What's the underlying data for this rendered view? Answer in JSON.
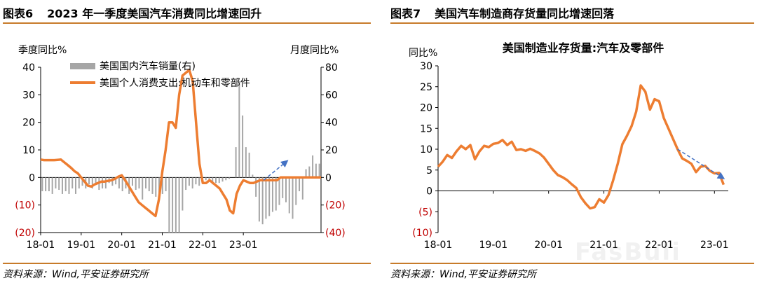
{
  "panels": [
    {
      "number": "图表6",
      "title": "2023 年一季度美国汽车消费同比增速回升"
    },
    {
      "number": "图表7",
      "title": "美国汽车制造商存货量同比增速回落"
    }
  ],
  "source": "资料来源：Wind,平安证券研究所",
  "watermark": "FasBuli",
  "chart_data": [
    {
      "type": "bar+line",
      "y_left_label": "季度同比%",
      "y_right_label": "月度同比%",
      "y_left_ticks": [
        "40",
        "30",
        "20",
        "10",
        "0",
        "(10)",
        "(20)"
      ],
      "y_right_ticks": [
        "80",
        "60",
        "40",
        "20",
        "0",
        "(20)",
        "(40)"
      ],
      "ylim_left": [
        -20,
        40
      ],
      "ylim_right": [
        -40,
        80
      ],
      "x_ticks": [
        "18-01",
        "19-01",
        "20-01",
        "21-01",
        "22-01",
        "23-01"
      ],
      "legend": [
        "美国国内汽车销量(右)",
        "美国个人消费支出:机动车和零部件"
      ],
      "colors": {
        "line": "#ed7d31",
        "bars": "#a6a6a6",
        "arrow": "#4472c4",
        "negative": "#c00000"
      },
      "series": [
        {
          "name": "美国国内汽车销量(右)",
          "axis": "right",
          "type": "bar",
          "values": [
            -10,
            -10,
            -10,
            -12,
            -8,
            -9,
            -12,
            -10,
            -12,
            -8,
            -12,
            -8,
            -6,
            -8,
            -5,
            -8,
            -4,
            -9,
            -8,
            -8,
            -4,
            -6,
            -5,
            -8,
            -10,
            -8,
            -12,
            -6,
            -9,
            -8,
            -16,
            -8,
            -10,
            -12,
            -14,
            -15,
            -12,
            -10,
            -40,
            -40,
            -40,
            -40,
            -24,
            -9,
            -6,
            -8,
            -5,
            -6,
            -3,
            -2,
            -2,
            -5,
            -4,
            -4,
            -3,
            -2,
            -1,
            0,
            22,
            70,
            45,
            22,
            18,
            2,
            -14,
            -32,
            -34,
            -30,
            -28,
            -25,
            -24,
            -20,
            -15,
            -18,
            -26,
            -30,
            -20,
            -10,
            -16,
            6,
            8,
            16,
            10,
            10
          ]
        },
        {
          "name": "美国个人消费支出:机动车和零部件",
          "axis": "left",
          "type": "line",
          "x": [
            0,
            1,
            2,
            3,
            4,
            5,
            6,
            7,
            8,
            9,
            10,
            11,
            12,
            13,
            14,
            15,
            16,
            17,
            18,
            19,
            20,
            21,
            22,
            23,
            24,
            25,
            26,
            27,
            28,
            29,
            30,
            31,
            32,
            33,
            34,
            35,
            36,
            37,
            38,
            39,
            40,
            41,
            42,
            43,
            44,
            45,
            46,
            47,
            48,
            49,
            50,
            51,
            52,
            53,
            54,
            55,
            56,
            57,
            58,
            59,
            60,
            61,
            62,
            63,
            64,
            65,
            66,
            67,
            68,
            69,
            70,
            71,
            72,
            73,
            74,
            75,
            76,
            77,
            78,
            79,
            80,
            81,
            82,
            83
          ],
          "values": [
            6.5,
            6.3,
            6.3,
            6.3,
            6.3,
            6.4,
            6.5,
            5.5,
            4.5,
            3.5,
            2.3,
            1.5,
            0,
            -1.5,
            -3,
            -3.3,
            -2.5,
            -2,
            -1.5,
            -1.5,
            -1.2,
            -1,
            -0.5,
            0.3,
            0.8,
            -1,
            -3,
            -5,
            -7,
            -9,
            -10,
            -11,
            -12,
            -13,
            -14,
            -8,
            2,
            10,
            20,
            20,
            18,
            30,
            37,
            38,
            39,
            35,
            20,
            5,
            -2,
            -2,
            -1,
            -2,
            -3,
            -4,
            -6,
            -8,
            -12,
            -13,
            -6,
            -3,
            -1,
            -1.5,
            -2,
            -2,
            -1.5,
            -1,
            -1,
            -1,
            -1,
            -1,
            -1,
            0,
            0,
            0,
            0,
            0,
            0,
            0,
            0,
            0,
            0,
            0,
            0,
            0
          ]
        },
        {
          "name": "",
          "axis": "left",
          "type": "arrow",
          "from": [
            66,
            -1
          ],
          "to": [
            73,
            6
          ]
        }
      ]
    },
    {
      "type": "line",
      "title": "美国制造业存货量:汽车及零部件",
      "ylabel": "同比%",
      "y_ticks": [
        "30",
        "25",
        "20",
        "15",
        "10",
        "5",
        "0",
        "(5)",
        "(10)"
      ],
      "ylim": [
        -10,
        30
      ],
      "x_ticks": [
        "18-01",
        "19-01",
        "20-01",
        "21-01",
        "22-01",
        "23-01"
      ],
      "colors": {
        "line": "#ed7d31",
        "arrow": "#4472c4",
        "negative": "#c00000"
      },
      "series": [
        {
          "name": "",
          "type": "line",
          "values": [
            5.8,
            7,
            8.6,
            7.9,
            9.5,
            10.8,
            10,
            11,
            7.6,
            9.5,
            10.8,
            10.5,
            11.3,
            11.5,
            12.2,
            11,
            11.8,
            9.8,
            10,
            9.6,
            10.1,
            9.6,
            9,
            8,
            6.5,
            5,
            3.8,
            3.3,
            2.6,
            1.6,
            0.7,
            -1.5,
            -3,
            -4.2,
            -3.9,
            -2,
            -2.8,
            -1,
            2.5,
            6.5,
            11.2,
            13.2,
            15.5,
            19,
            25.3,
            23.8,
            19.5,
            22,
            21.5,
            17.5,
            15,
            12.5,
            10,
            7.8,
            7.2,
            6.5,
            4.5,
            5.8,
            6,
            4.8,
            4.2,
            4.3,
            1.5
          ]
        },
        {
          "name": "",
          "type": "arrow",
          "from": [
            52,
            10
          ],
          "to": [
            62,
            3
          ]
        }
      ]
    }
  ]
}
